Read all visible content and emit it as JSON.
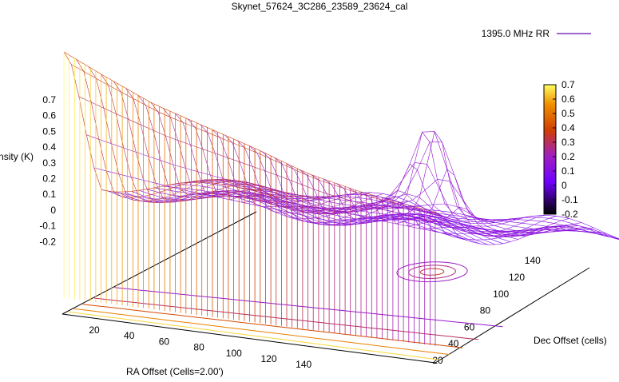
{
  "chart_data": {
    "type": "surface",
    "title": "Skynet_57624_3C286_23589_23624_cal",
    "zlabel": "Intensity (K)",
    "xlabel": "RA Offset (Cells=2.00')",
    "ylabel": "Dec Offset (cells)",
    "legend": {
      "label": "1395.0 MHz RR",
      "placement": "top-right"
    },
    "z_ticks": [
      "0.7",
      "0.6",
      "0.5",
      "0.4",
      "0.3",
      "0.2",
      "0.1",
      "0",
      "-0.1",
      "-0.2"
    ],
    "x_ticks": [
      "20",
      "40",
      "60",
      "80",
      "100",
      "120",
      "140"
    ],
    "y_ticks": [
      "20",
      "40",
      "60",
      "80",
      "100",
      "120",
      "140"
    ],
    "colorbar_ticks": [
      "0.7",
      "0.6",
      "0.5",
      "0.4",
      "0.3",
      "0.2",
      "0.1",
      "0",
      "-0.1",
      "-0.2"
    ],
    "zlim": [
      -0.2,
      0.7
    ],
    "xlim": [
      5,
      150
    ],
    "ylim": [
      15,
      150
    ],
    "colors": {
      "low": "#000000",
      "blue": "#7000ff",
      "purple": "#a020c0",
      "red": "#d04000",
      "orange": "#f09000",
      "yellow": "#ffff60",
      "legend_line": "#7a30c0"
    },
    "source_peak": {
      "ra": 95,
      "dec": 110,
      "intensity": 0.42
    },
    "ridge_profile": [
      {
        "ra": 5,
        "intensity": 0.7
      },
      {
        "ra": 20,
        "intensity": 0.62
      },
      {
        "ra": 40,
        "intensity": 0.52
      },
      {
        "ra": 60,
        "intensity": 0.45
      },
      {
        "ra": 80,
        "intensity": 0.38
      },
      {
        "ra": 100,
        "intensity": 0.3
      },
      {
        "ra": 120,
        "intensity": 0.25
      },
      {
        "ra": 150,
        "intensity": 0.2
      }
    ],
    "background_level": 0.1
  }
}
